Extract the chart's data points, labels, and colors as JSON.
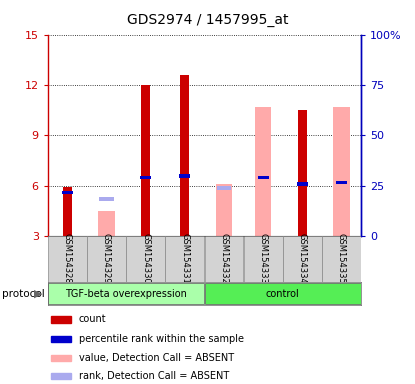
{
  "title": "GDS2974 / 1457995_at",
  "samples": [
    "GSM154328",
    "GSM154329",
    "GSM154330",
    "GSM154331",
    "GSM154332",
    "GSM154333",
    "GSM154334",
    "GSM154335"
  ],
  "ylim_left": [
    3,
    15
  ],
  "ylim_right": [
    0,
    100
  ],
  "yticks_left": [
    3,
    6,
    9,
    12,
    15
  ],
  "yticks_right": [
    0,
    25,
    50,
    75,
    100
  ],
  "yticklabels_right": [
    "0",
    "25",
    "50",
    "75",
    "100%"
  ],
  "red_bars": [
    5.9,
    null,
    12.0,
    12.6,
    null,
    null,
    10.5,
    null
  ],
  "pink_bars": [
    null,
    4.5,
    null,
    null,
    6.1,
    10.7,
    null,
    10.7
  ],
  "blue_markers": [
    5.6,
    null,
    6.5,
    6.6,
    null,
    6.5,
    6.1,
    6.2
  ],
  "lightblue_markers": [
    null,
    5.2,
    null,
    null,
    5.85,
    null,
    null,
    null
  ],
  "color_red": "#cc0000",
  "color_pink": "#ffaaaa",
  "color_blue": "#0000cc",
  "color_lightblue": "#aaaaee",
  "color_group1_bg": "#aaffaa",
  "color_group2_bg": "#55ee55",
  "group1_label": "TGF-beta overexpression",
  "group2_label": "control",
  "group1_indices": [
    0,
    1,
    2,
    3
  ],
  "group2_indices": [
    4,
    5,
    6,
    7
  ],
  "legend_labels": [
    "count",
    "percentile rank within the sample",
    "value, Detection Call = ABSENT",
    "rank, Detection Call = ABSENT"
  ],
  "legend_colors": [
    "#cc0000",
    "#0000cc",
    "#ffaaaa",
    "#aaaaee"
  ],
  "protocol_label": "protocol",
  "ylabel_left_color": "#cc0000",
  "ylabel_right_color": "#0000bb",
  "title_fontsize": 10,
  "tick_fontsize": 8,
  "sample_fontsize": 6,
  "legend_fontsize": 7,
  "protocol_fontsize": 7.5
}
